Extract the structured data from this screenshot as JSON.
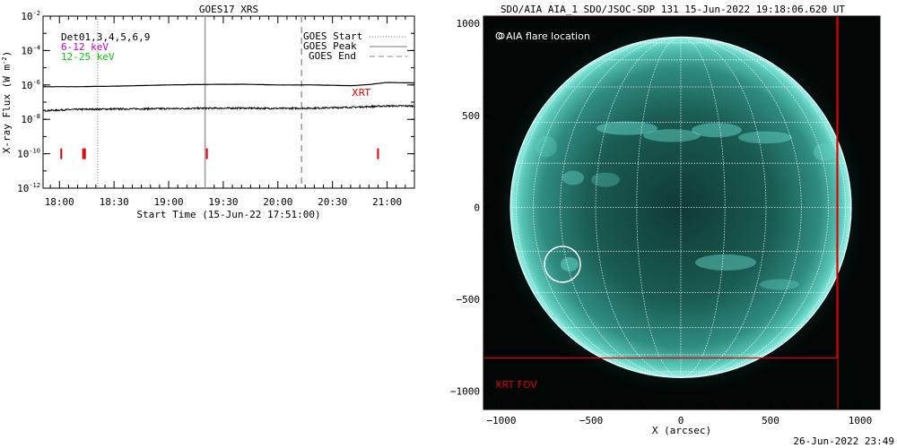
{
  "chart_data": [
    {
      "type": "line",
      "title": "GOES17 XRS",
      "xlabel": "Start Time (15-Jun-22 17:51:00)",
      "ylabel": "X-ray Flux (W m",
      "ylabel_sup": "-2",
      "ylabel_end": ")",
      "y_scale": "log",
      "xlim": [
        "17:51",
        "21:15"
      ],
      "ylim": [
        1e-12,
        0.01
      ],
      "x_ticks": [
        "18:00",
        "18:30",
        "19:00",
        "19:30",
        "20:00",
        "20:30",
        "21:00"
      ],
      "y_ticks": [
        {
          "base": "10",
          "exp": "-2",
          "value": -2
        },
        {
          "base": "10",
          "exp": "-4",
          "value": -4
        },
        {
          "base": "10",
          "exp": "-6",
          "value": -6
        },
        {
          "base": "10",
          "exp": "-8",
          "value": -8
        },
        {
          "base": "10",
          "exp": "-10",
          "value": -10
        },
        {
          "base": "10",
          "exp": "-12",
          "value": -12
        }
      ],
      "legend_left": [
        {
          "text": "Det01,3,4,5,6,9",
          "color": "#000000"
        },
        {
          "text": "6-12 keV",
          "color": "#cc00cc"
        },
        {
          "text": "12-25 keV",
          "color": "#00cc00"
        }
      ],
      "legend_right": [
        {
          "text": "GOES Start",
          "style": "dotted"
        },
        {
          "text": "GOES Peak",
          "style": "solid"
        },
        {
          "text": "GOES End",
          "style": "dashed"
        }
      ],
      "series": [
        {
          "channel": "long",
          "x": [
            "17:51",
            "18:10",
            "18:30",
            "19:00",
            "19:20",
            "19:40",
            "20:00",
            "20:20",
            "20:40",
            "20:50",
            "21:00",
            "21:15"
          ],
          "y": [
            7.9e-07,
            7.9e-07,
            8.5e-07,
            1e-06,
            1.07e-06,
            1.1e-06,
            1e-06,
            1e-06,
            9e-07,
            1.05e-06,
            1.4e-06,
            1.3e-06
          ]
        },
        {
          "channel": "short",
          "x": [
            "17:51",
            "18:10",
            "18:30",
            "19:00",
            "19:20",
            "19:40",
            "20:00",
            "20:20",
            "20:40",
            "21:00",
            "21:15"
          ],
          "y": [
            3.2e-08,
            3.8e-08,
            4e-08,
            4.2e-08,
            4.4e-08,
            4.5e-08,
            4.3e-08,
            4.5e-08,
            5e-08,
            6e-08,
            6e-08
          ]
        }
      ],
      "markers": {
        "start": "18:21",
        "peak": "19:20",
        "end": "20:13"
      },
      "xrt_label": "XRT",
      "xrt_marks": [
        "18:01",
        "18:13",
        "18:14",
        "19:21",
        "20:55"
      ]
    },
    {
      "type": "image",
      "title": "SDO/AIA AIA_1 SDO/JSOC-SDP 131 15-Jun-2022 19:18:06.620 UT",
      "xlabel": "X (arcsec)",
      "xlim": [
        -1100,
        1110
      ],
      "ylim": [
        -1100,
        1040
      ],
      "x_ticks": [
        -1000,
        -500,
        0,
        500,
        1000
      ],
      "y_ticks": [
        1000,
        500,
        0,
        -500,
        -1000
      ],
      "legend": "O AIA flare location",
      "flare_location": [
        -660,
        -310
      ],
      "solar_radius": 950,
      "fov_label": "XRT FOV",
      "fov_box_1": [
        -1100,
        875,
        -1100,
        1040
      ],
      "fov_box_2": [
        -1105,
        870,
        -820,
        1040
      ],
      "colors": {
        "disk": "#30a8a0",
        "limb": "#9af4ea",
        "background": "#020605",
        "fov": "#e00000"
      }
    }
  ],
  "footer": {
    "timestamp": "26-Jun-2022 23:49"
  }
}
